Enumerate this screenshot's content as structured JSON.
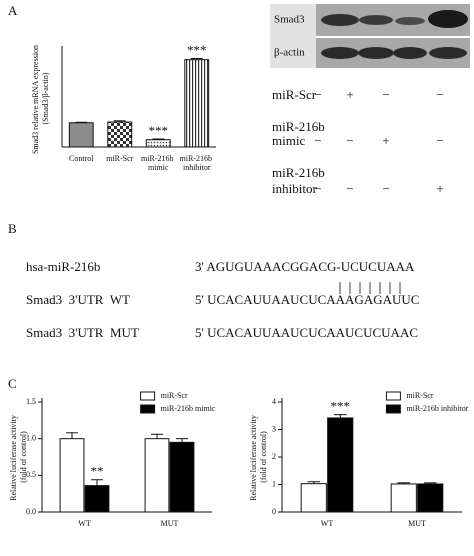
{
  "panel_labels": [
    "A",
    "B",
    "C"
  ],
  "blot": {
    "bands": [
      "Smad3",
      "β-actin"
    ],
    "rows": [
      {
        "label": "miR-Scr",
        "signs": [
          "−",
          "+",
          "−",
          "−"
        ]
      },
      {
        "label": "miR-216b mimic",
        "signs": [
          "−",
          "−",
          "+",
          "−"
        ]
      },
      {
        "label": "miR-216b inhibitor",
        "signs": [
          "−",
          "−",
          "−",
          "+"
        ]
      }
    ]
  },
  "alignment": [
    {
      "label": "hsa-miR-216b",
      "sequence": "3' AGUGUAAACGGACG-UCUCUAAA"
    },
    {
      "label": "Smad3  3'UTR  WT",
      "sequence": "5' UCACAUUAAUCUCAAAGAGAUUC"
    },
    {
      "label": "Smad3  3'UTR  MUT",
      "sequence": "5' UCACAUUAAUCUCAAUCUCUAAC"
    }
  ],
  "chart_data": [
    {
      "type": "bar",
      "y_label": "Smad3 relative mRNA expression (Smad3/β-actin)",
      "categories": [
        "Control",
        "miR-Scr",
        "miR-216b mimic",
        "miR-216b inhibitor"
      ],
      "values": [
        1.0,
        1.03,
        0.3,
        3.6
      ],
      "errors": [
        0.02,
        0.05,
        0.03,
        0.05
      ],
      "annotations": [
        null,
        null,
        "***",
        "***"
      ],
      "patterns": [
        "solid",
        "checker",
        "dots",
        "stripes"
      ],
      "color": "#8c8c8c",
      "ylim": [
        0,
        4
      ]
    },
    {
      "type": "bar",
      "y_label": "Relative luciferase activity (fold of control)",
      "categories": [
        "WT",
        "MUT"
      ],
      "series": [
        {
          "name": "miR-Scr",
          "color": "#ffffff",
          "values": [
            1.0,
            1.0
          ],
          "errors": [
            0.08,
            0.06
          ],
          "annotations": [
            null,
            null
          ]
        },
        {
          "name": "miR-216b mimic",
          "color": "#000000",
          "values": [
            0.36,
            0.95
          ],
          "errors": [
            0.08,
            0.05
          ],
          "annotations": [
            "**",
            null
          ]
        }
      ],
      "ylim": [
        0,
        1.5
      ],
      "yticks": [
        {
          "value": 0,
          "label": "0.0"
        },
        {
          "value": 0.5,
          "label": "0.5"
        },
        {
          "value": 1,
          "label": "1.0"
        },
        {
          "value": 1.5,
          "label": "1.5"
        }
      ],
      "legend": "upper right"
    },
    {
      "type": "bar",
      "y_label": "Relative luciferase activity (fold of control)",
      "categories": [
        "WT",
        "MUT"
      ],
      "series": [
        {
          "name": "miR-Scr",
          "color": "#ffffff",
          "values": [
            1.03,
            1.02
          ],
          "errors": [
            0.07,
            0.04
          ],
          "annotations": [
            null,
            null
          ]
        },
        {
          "name": "miR-216b inhibitor",
          "color": "#000000",
          "values": [
            3.42,
            1.02
          ],
          "errors": [
            0.12,
            0.04
          ],
          "annotations": [
            "***",
            null
          ]
        }
      ],
      "ylim": [
        0,
        4
      ],
      "yticks": [
        0,
        1,
        2,
        3,
        4
      ],
      "legend": "upper right"
    }
  ]
}
